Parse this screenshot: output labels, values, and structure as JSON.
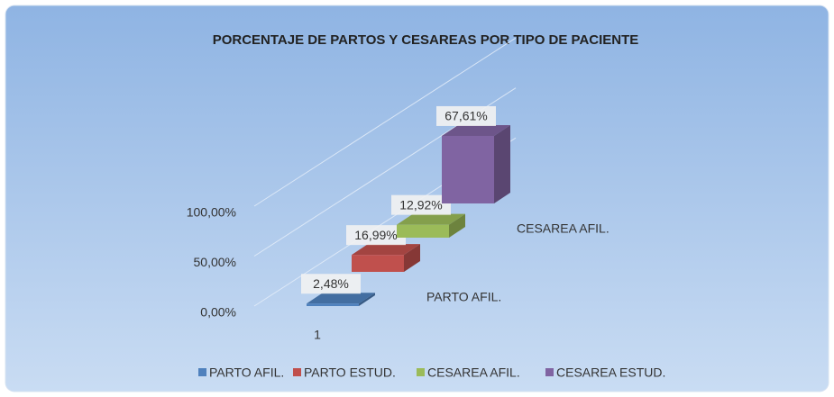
{
  "chart_data": {
    "type": "bar3d",
    "title": "PORCENTAJE DE PARTOS Y CESAREAS POR TIPO DE PACIENTE",
    "categories": [
      "1"
    ],
    "series": [
      {
        "name": "PARTO AFIL.",
        "color": "#4f81bd",
        "values": [
          2.48
        ],
        "value_labels": [
          "2,48%"
        ]
      },
      {
        "name": "PARTO ESTUD.",
        "color": "#c0504d",
        "values": [
          16.99
        ],
        "value_labels": [
          "16,99%"
        ]
      },
      {
        "name": "CESAREA AFIL.",
        "color": "#9bbb59",
        "values": [
          12.92
        ],
        "value_labels": [
          "12,92%"
        ]
      },
      {
        "name": "CESAREA ESTUD.",
        "color": "#8064a2",
        "values": [
          67.61
        ],
        "value_labels": [
          "67,61%"
        ]
      }
    ],
    "ylim": [
      0,
      100
    ],
    "yticks": [
      {
        "value": 0,
        "label": "0,00%"
      },
      {
        "value": 50,
        "label": "50,00%"
      },
      {
        "value": 100,
        "label": "100,00%"
      }
    ],
    "grid": true,
    "legend": "bottom"
  }
}
